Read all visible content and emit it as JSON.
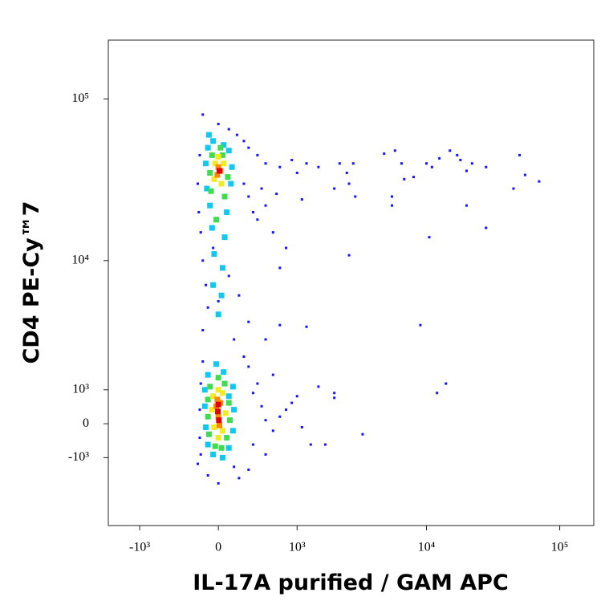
{
  "chart_data": {
    "type": "scatter",
    "scale": "biexponential",
    "x_label": "IL-17A purified / GAM APC",
    "y_label": "CD4 PE-Cy™7",
    "xlim": [
      -1800,
      180000
    ],
    "ylim": [
      -4000,
      230000
    ],
    "xticks": [
      {
        "value": -1000,
        "label": "-10³"
      },
      0,
      {
        "value": 1000,
        "label": "10³"
      },
      {
        "value": 10000,
        "label": "10⁴"
      },
      {
        "value": 100000,
        "label": "10⁵"
      }
    ],
    "yticks": [
      {
        "value": -1000,
        "label": "-10³"
      },
      0,
      {
        "value": 1000,
        "label": "10³"
      },
      {
        "value": 10000,
        "label": "10⁴"
      },
      {
        "value": 100000,
        "label": "10⁵"
      }
    ],
    "series": [
      {
        "color": "#1414ff",
        "x": [
          -150,
          -100,
          0,
          100,
          180,
          250,
          300,
          400,
          500,
          700,
          900,
          1200,
          1500,
          -180,
          -200,
          -190,
          -170,
          250,
          300,
          350,
          400,
          500,
          600,
          800,
          700,
          -150,
          -120,
          -100,
          200,
          300,
          -150,
          150,
          100,
          -50,
          50,
          0,
          450,
          650,
          1000,
          1100
        ],
        "values": [
          80000,
          60000,
          70000,
          65000,
          60000,
          55000,
          50000,
          45000,
          40000,
          38000,
          42000,
          40000,
          38000,
          45000,
          30000,
          20000,
          15000,
          30000,
          25000,
          20000,
          18000,
          22000,
          15000,
          12000,
          9000,
          10000,
          7000,
          5000,
          6000,
          4000,
          3500,
          3000,
          8000,
          12000,
          9000,
          5500,
          28000,
          26000,
          35000,
          24000
        ]
      },
      {
        "color": "#1414ff",
        "x": [
          2200,
          2800,
          2500,
          2600,
          2000,
          2900,
          4800,
          5800,
          6500,
          6800,
          5500,
          5500,
          8000,
          10000,
          11000,
          12500,
          15000,
          17000,
          18000,
          20000,
          22000,
          28000,
          50000,
          55000,
          70000,
          45000,
          20000,
          10500,
          28000,
          2600,
          9000,
          1200,
          700,
          500,
          14000,
          12000
        ],
        "values": [
          40000,
          40000,
          35000,
          30000,
          28000,
          25000,
          46000,
          48000,
          40000,
          32000,
          25000,
          22000,
          33000,
          40000,
          38000,
          43000,
          48000,
          45000,
          42000,
          36000,
          40000,
          38000,
          45000,
          34000,
          31000,
          28000,
          22000,
          14000,
          16000,
          10800,
          3800,
          3700,
          3800,
          3000,
          1200,
          900
        ]
      },
      {
        "color": "#1414ff",
        "x": [
          2000,
          2000,
          1500,
          1000,
          900,
          800,
          700,
          1100,
          1300,
          1700,
          3300,
          500,
          300,
          200,
          0,
          -100,
          -200,
          400,
          600,
          300,
          250,
          -150,
          -170,
          -180,
          -180,
          -170,
          150,
          350,
          450,
          500,
          600,
          350
        ],
        "values": [
          900,
          750,
          1100,
          800,
          600,
          400,
          200,
          -100,
          -600,
          -600,
          -300,
          -900,
          -1400,
          -1700,
          -1900,
          -1600,
          -1200,
          1200,
          1500,
          1800,
          2200,
          2000,
          1200,
          400,
          -400,
          -900,
          -1300,
          900,
          500,
          100,
          -200,
          -600
        ]
      },
      {
        "color": "#10c8f0",
        "x": [
          -100,
          -50,
          50,
          100,
          -120,
          130,
          -110,
          120,
          -80,
          80,
          -60,
          60,
          -40,
          40,
          -50,
          30,
          0,
          -90,
          -100,
          50,
          -130,
          140,
          -130,
          150,
          -120,
          140,
          -100,
          100,
          -50,
          40,
          -20,
          100
        ],
        "values": [
          50000,
          55000,
          52000,
          48000,
          40000,
          38000,
          28000,
          30000,
          22000,
          20000,
          16000,
          14000,
          11000,
          9000,
          7000,
          6000,
          4500,
          60000,
          1500,
          1600,
          1000,
          1100,
          500,
          400,
          -100,
          -200,
          -600,
          -700,
          -900,
          -1000,
          1900,
          800
        ]
      },
      {
        "color": "#40dc50",
        "x": [
          -60,
          40,
          -80,
          90,
          -70,
          60,
          -20,
          20,
          -80,
          60,
          -100,
          100,
          -100,
          110,
          -90,
          80,
          -30,
          30,
          0
        ],
        "values": [
          45000,
          45000,
          35000,
          33000,
          27000,
          25000,
          18000,
          50000,
          1100,
          1200,
          700,
          600,
          200,
          100,
          -300,
          -400,
          -650,
          -700,
          1400
        ]
      },
      {
        "color": "#f0ec20",
        "x": [
          -30,
          50,
          -40,
          30,
          0,
          -50,
          40,
          -60,
          70,
          -40,
          40,
          0,
          0
        ],
        "values": [
          40000,
          40000,
          32000,
          30000,
          44000,
          800,
          900,
          400,
          300,
          -100,
          -200,
          -400,
          1000
        ]
      },
      {
        "color": "#ff8a00",
        "x": [
          0,
          -10,
          20,
          -20,
          20,
          0,
          10,
          -10
        ],
        "values": [
          38000,
          34000,
          36000,
          500,
          600,
          200,
          -50,
          700
        ]
      },
      {
        "color": "#e00000",
        "x": [
          10,
          0,
          -5,
          5
        ],
        "values": [
          36000,
          550,
          350,
          100
        ]
      }
    ]
  }
}
